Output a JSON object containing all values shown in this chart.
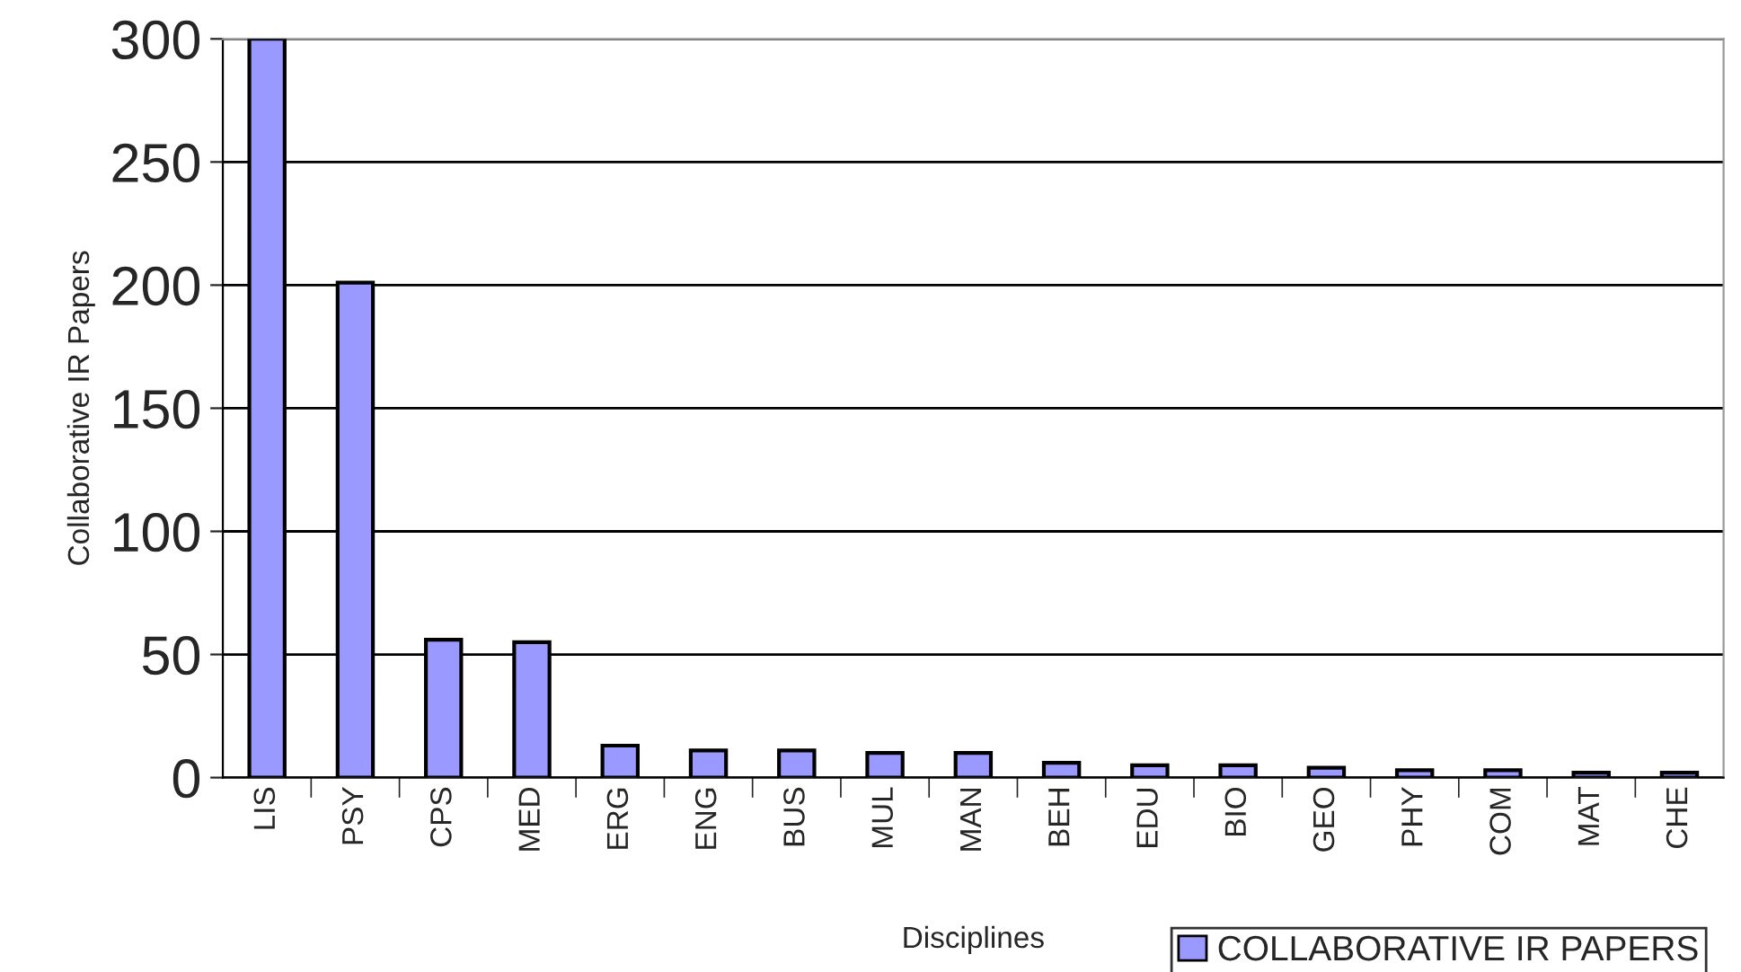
{
  "chart_data": {
    "type": "bar",
    "xlabel": "Disciplines",
    "ylabel": "Collaborative IR Papers",
    "categories": [
      "LIS",
      "PSY",
      "CPS",
      "MED",
      "ERG",
      "ENG",
      "BUS",
      "MUL",
      "MAN",
      "BEH",
      "EDU",
      "BIO",
      "GEO",
      "PHY",
      "COM",
      "MAT",
      "CHE"
    ],
    "series": [
      {
        "name": "COLLABORATIVE IR PAPERS",
        "color": "#9999ff",
        "values": [
          300,
          201,
          56,
          55,
          13,
          11,
          11,
          10,
          10,
          6,
          5,
          5,
          4,
          3,
          3,
          2,
          2
        ]
      }
    ],
    "ylim": [
      0,
      300
    ],
    "yticks": [
      0,
      50,
      100,
      150,
      200,
      250,
      300
    ],
    "grid": "y",
    "legend": "bottom right"
  }
}
